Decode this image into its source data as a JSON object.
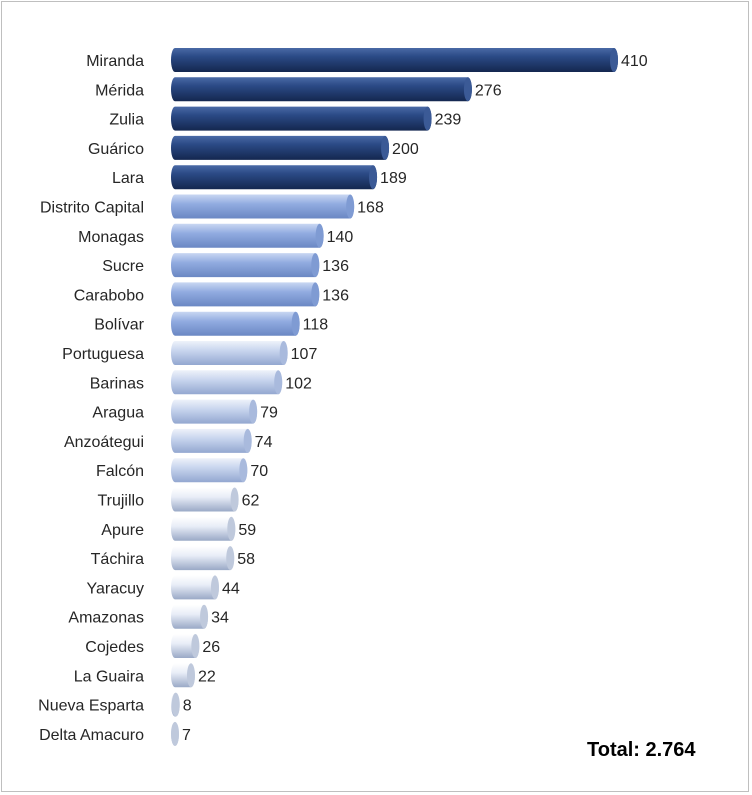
{
  "chart_data": {
    "type": "bar",
    "orientation": "horizontal",
    "categories": [
      "Miranda",
      "Mérida",
      "Zulia",
      "Guárico",
      "Lara",
      "Distrito Capital",
      "Monagas",
      "Sucre",
      "Carabobo",
      "Bolívar",
      "Portuguesa",
      "Barinas",
      "Aragua",
      "Anzoátegui",
      "Falcón",
      "Trujillo",
      "Apure",
      "Táchira",
      "Yaracuy",
      "Amazonas",
      "Cojedes",
      "La Guaira",
      "Nueva Esparta",
      "Delta Amacuro"
    ],
    "values": [
      410,
      276,
      239,
      200,
      189,
      168,
      140,
      136,
      136,
      118,
      107,
      102,
      79,
      74,
      70,
      62,
      59,
      58,
      44,
      34,
      26,
      22,
      8,
      7
    ],
    "value_labels": [
      "410",
      "276",
      "239",
      "200",
      "189",
      "168",
      "140",
      "136",
      "136",
      "118",
      "107",
      "102",
      "79",
      "74",
      "70",
      "62",
      "59",
      "58",
      "44",
      "34",
      "26",
      "22",
      "8",
      "7"
    ],
    "xlim": [
      0,
      410
    ],
    "grid": false,
    "legend": "none",
    "colors": {
      "tier_dark": "#1f3864",
      "tier_mid": "#8faadc",
      "tier_light": "#c5d3ec",
      "tier_lightest": "#e6ecf7"
    },
    "bar_tiers": [
      "dark",
      "dark",
      "dark",
      "dark",
      "dark",
      "mid",
      "mid",
      "mid",
      "mid",
      "mid",
      "light",
      "light",
      "light",
      "light",
      "light",
      "lightest",
      "lightest",
      "lightest",
      "lightest",
      "lightest",
      "lightest",
      "lightest",
      "lightest",
      "lightest"
    ]
  },
  "total": {
    "label": "Total: 2.764"
  }
}
